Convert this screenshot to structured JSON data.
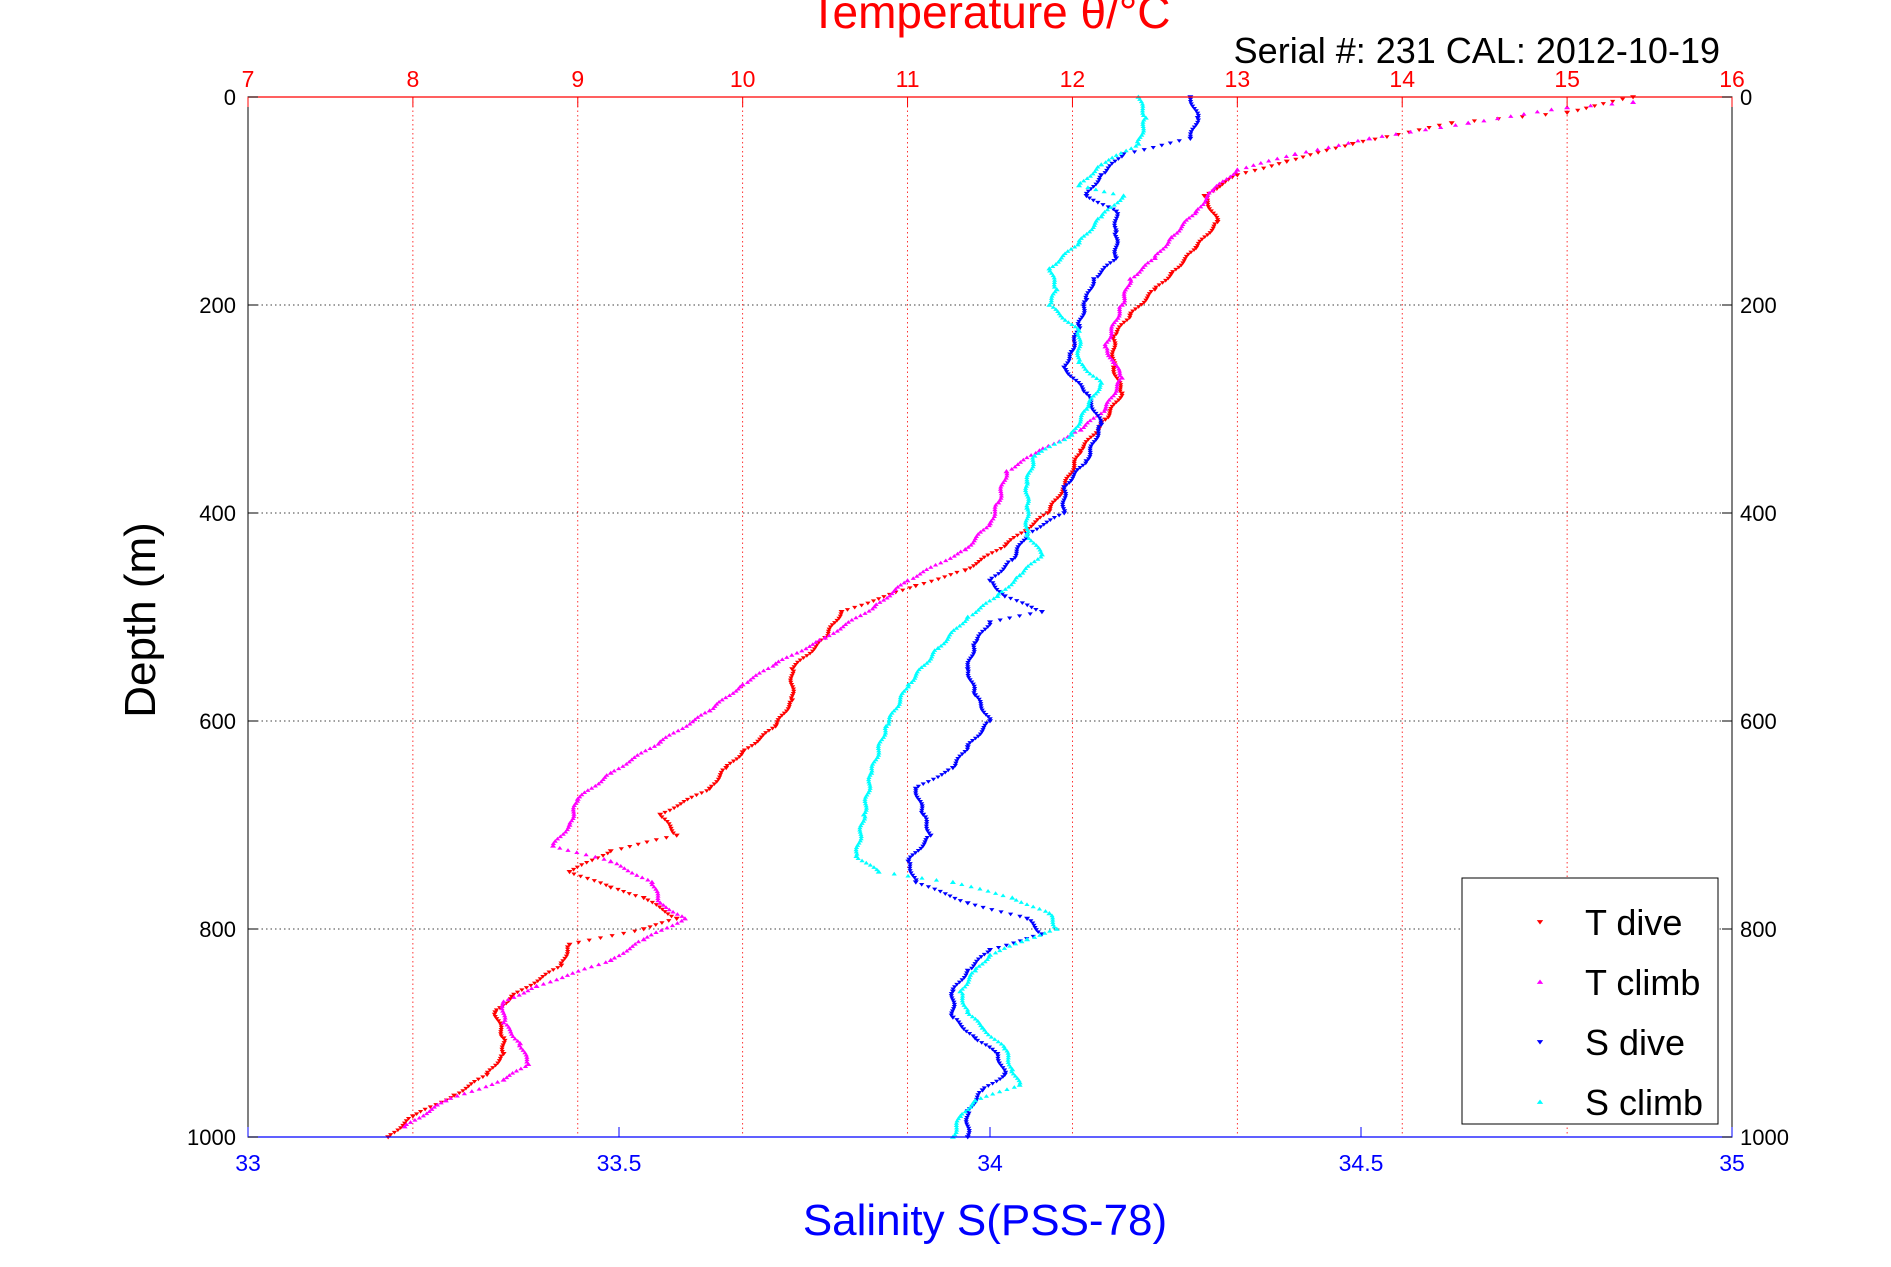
{
  "figure": {
    "serial_text": "Serial #: 231  CAL: 2012-10-19"
  },
  "chart_data": {
    "type": "scatter",
    "title": "Temperature θ/°C",
    "ylabel": "Depth (m)",
    "xlabel_bottom": "Salinity S(PSS-78)",
    "xlabel_top": "Temperature θ/°C",
    "y_range": [
      0,
      1000
    ],
    "y_reversed": true,
    "y_ticks": [
      0,
      200,
      400,
      600,
      800,
      1000
    ],
    "x_bottom_range": [
      33,
      35
    ],
    "x_bottom_ticks": [
      33,
      33.5,
      34,
      34.5,
      35
    ],
    "x_top_range": [
      7,
      16
    ],
    "x_top_ticks": [
      7,
      8,
      9,
      10,
      11,
      12,
      13,
      14,
      15,
      16
    ],
    "grid": true,
    "legend_position": "bottom-right",
    "colors": {
      "axis_top": "#ff0000",
      "axis_bottom": "#0000ff",
      "t_dive": "#ff0000",
      "t_climb": "#ff00ff",
      "s_dive": "#0000ff",
      "s_climb": "#00ffff"
    },
    "series": [
      {
        "name": "T dive",
        "axis": "top",
        "marker": "down-triangle",
        "color": "#ff0000",
        "points": [
          [
            15.4,
            0
          ],
          [
            15.0,
            15
          ],
          [
            14.3,
            25
          ],
          [
            13.7,
            45
          ],
          [
            13.3,
            62
          ],
          [
            13.0,
            75
          ],
          [
            12.8,
            95
          ],
          [
            12.88,
            120
          ],
          [
            12.75,
            145
          ],
          [
            12.6,
            170
          ],
          [
            12.5,
            185
          ],
          [
            12.35,
            210
          ],
          [
            12.25,
            230
          ],
          [
            12.25,
            260
          ],
          [
            12.3,
            285
          ],
          [
            12.2,
            310
          ],
          [
            12.05,
            340
          ],
          [
            11.95,
            375
          ],
          [
            11.85,
            400
          ],
          [
            11.6,
            430
          ],
          [
            11.35,
            455
          ],
          [
            11.05,
            470
          ],
          [
            10.6,
            495
          ],
          [
            10.5,
            520
          ],
          [
            10.3,
            550
          ],
          [
            10.3,
            580
          ],
          [
            10.2,
            605
          ],
          [
            10.0,
            630
          ],
          [
            9.9,
            645
          ],
          [
            9.8,
            665
          ],
          [
            9.5,
            690
          ],
          [
            9.6,
            710
          ],
          [
            9.2,
            725
          ],
          [
            8.95,
            745
          ],
          [
            9.2,
            760
          ],
          [
            9.4,
            770
          ],
          [
            9.6,
            790
          ],
          [
            9.4,
            800
          ],
          [
            8.95,
            815
          ],
          [
            8.9,
            835
          ],
          [
            8.6,
            865
          ],
          [
            8.5,
            880
          ],
          [
            8.55,
            905
          ],
          [
            8.55,
            920
          ],
          [
            8.45,
            940
          ],
          [
            8.25,
            960
          ],
          [
            8.0,
            980
          ],
          [
            7.85,
            1000
          ]
        ]
      },
      {
        "name": "T climb",
        "axis": "top",
        "marker": "up-triangle",
        "color": "#ff00ff",
        "points": [
          [
            15.4,
            5
          ],
          [
            15.0,
            10
          ],
          [
            14.4,
            25
          ],
          [
            13.8,
            40
          ],
          [
            13.35,
            55
          ],
          [
            13.0,
            70
          ],
          [
            12.85,
            90
          ],
          [
            12.75,
            110
          ],
          [
            12.6,
            135
          ],
          [
            12.5,
            155
          ],
          [
            12.35,
            175
          ],
          [
            12.3,
            200
          ],
          [
            12.2,
            240
          ],
          [
            12.25,
            255
          ],
          [
            12.3,
            270
          ],
          [
            12.2,
            300
          ],
          [
            12.05,
            320
          ],
          [
            11.8,
            340
          ],
          [
            11.6,
            360
          ],
          [
            11.55,
            390
          ],
          [
            11.5,
            410
          ],
          [
            11.35,
            435
          ],
          [
            11.0,
            465
          ],
          [
            10.8,
            490
          ],
          [
            10.5,
            520
          ],
          [
            10.2,
            545
          ],
          [
            10.0,
            565
          ],
          [
            9.8,
            590
          ],
          [
            9.5,
            620
          ],
          [
            9.2,
            650
          ],
          [
            9.0,
            675
          ],
          [
            8.95,
            700
          ],
          [
            8.85,
            720
          ],
          [
            9.2,
            735
          ],
          [
            9.45,
            755
          ],
          [
            9.5,
            775
          ],
          [
            9.65,
            790
          ],
          [
            9.4,
            810
          ],
          [
            9.2,
            830
          ],
          [
            8.75,
            855
          ],
          [
            8.55,
            870
          ],
          [
            8.55,
            890
          ],
          [
            8.65,
            910
          ],
          [
            8.7,
            930
          ],
          [
            8.55,
            945
          ],
          [
            8.2,
            965
          ],
          [
            7.95,
            990
          ]
        ]
      },
      {
        "name": "S dive",
        "axis": "bottom",
        "marker": "down-triangle",
        "color": "#0000ff",
        "points": [
          [
            34.27,
            0
          ],
          [
            34.28,
            20
          ],
          [
            34.27,
            40
          ],
          [
            34.18,
            55
          ],
          [
            34.15,
            75
          ],
          [
            34.13,
            95
          ],
          [
            34.17,
            110
          ],
          [
            34.17,
            130
          ],
          [
            34.17,
            155
          ],
          [
            34.14,
            175
          ],
          [
            34.13,
            195
          ],
          [
            34.12,
            220
          ],
          [
            34.11,
            245
          ],
          [
            34.1,
            260
          ],
          [
            34.13,
            285
          ],
          [
            34.15,
            315
          ],
          [
            34.13,
            350
          ],
          [
            34.1,
            375
          ],
          [
            34.1,
            400
          ],
          [
            34.05,
            420
          ],
          [
            34.03,
            445
          ],
          [
            34.0,
            465
          ],
          [
            34.02,
            480
          ],
          [
            34.07,
            495
          ],
          [
            34.0,
            505
          ],
          [
            33.98,
            525
          ],
          [
            33.97,
            550
          ],
          [
            33.98,
            575
          ],
          [
            34.0,
            600
          ],
          [
            33.97,
            625
          ],
          [
            33.95,
            645
          ],
          [
            33.9,
            665
          ],
          [
            33.91,
            690
          ],
          [
            33.92,
            710
          ],
          [
            33.89,
            735
          ],
          [
            33.9,
            755
          ],
          [
            33.97,
            775
          ],
          [
            34.05,
            790
          ],
          [
            34.07,
            805
          ],
          [
            34.0,
            820
          ],
          [
            33.97,
            840
          ],
          [
            33.95,
            860
          ],
          [
            33.95,
            885
          ],
          [
            33.98,
            905
          ],
          [
            34.01,
            920
          ],
          [
            34.02,
            940
          ],
          [
            33.99,
            955
          ],
          [
            33.97,
            975
          ],
          [
            33.97,
            1000
          ]
        ]
      },
      {
        "name": "S climb",
        "axis": "bottom",
        "marker": "up-triangle",
        "color": "#00ffff",
        "points": [
          [
            34.2,
            0
          ],
          [
            34.21,
            20
          ],
          [
            34.2,
            45
          ],
          [
            34.15,
            65
          ],
          [
            34.12,
            85
          ],
          [
            34.18,
            95
          ],
          [
            34.15,
            115
          ],
          [
            34.12,
            140
          ],
          [
            34.08,
            165
          ],
          [
            34.09,
            185
          ],
          [
            34.08,
            200
          ],
          [
            34.12,
            225
          ],
          [
            34.12,
            255
          ],
          [
            34.15,
            275
          ],
          [
            34.13,
            300
          ],
          [
            34.11,
            325
          ],
          [
            34.06,
            345
          ],
          [
            34.05,
            370
          ],
          [
            34.05,
            395
          ],
          [
            34.05,
            420
          ],
          [
            34.07,
            440
          ],
          [
            34.04,
            460
          ],
          [
            34.01,
            480
          ],
          [
            33.97,
            500
          ],
          [
            33.93,
            530
          ],
          [
            33.89,
            565
          ],
          [
            33.86,
            605
          ],
          [
            33.84,
            650
          ],
          [
            33.83,
            690
          ],
          [
            33.82,
            730
          ],
          [
            33.85,
            745
          ],
          [
            33.95,
            755
          ],
          [
            34.03,
            770
          ],
          [
            34.08,
            785
          ],
          [
            34.09,
            800
          ],
          [
            34.05,
            810
          ],
          [
            34.0,
            825
          ],
          [
            33.98,
            840
          ],
          [
            33.96,
            860
          ],
          [
            33.97,
            880
          ],
          [
            33.99,
            895
          ],
          [
            34.02,
            915
          ],
          [
            34.03,
            935
          ],
          [
            34.04,
            950
          ],
          [
            33.98,
            965
          ],
          [
            33.96,
            980
          ],
          [
            33.95,
            1000
          ]
        ]
      }
    ],
    "legend": [
      "T dive",
      "T climb",
      "S dive",
      "S climb"
    ]
  }
}
